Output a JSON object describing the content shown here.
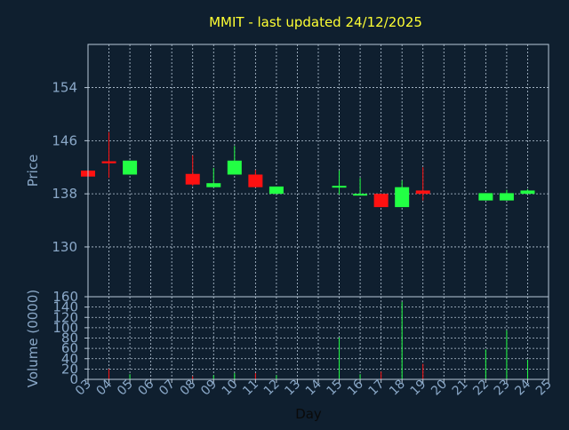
{
  "colors": {
    "background": "#0f1f2f",
    "frame": "#b8c8d8",
    "grid": "#b8c8d8",
    "title": "#ffff33",
    "axis_text": "#8aa8c8",
    "up": "#22ff44",
    "down": "#ff1111"
  },
  "chart_data": {
    "type": "candlestick",
    "title": "MMIT - last updated 24/12/2025",
    "xlabel": "Day",
    "price_panel": {
      "ylabel": "Price",
      "ylim": [
        122.5,
        160.5
      ],
      "yticks": [
        130,
        138,
        146,
        154
      ],
      "grid": true
    },
    "volume_panel": {
      "ylabel": "Volume (0000)",
      "ylim": [
        0,
        160
      ],
      "yticks": [
        0,
        20,
        40,
        60,
        80,
        100,
        120,
        140,
        160
      ],
      "grid": true
    },
    "x_ticks": [
      "03",
      "04",
      "05",
      "06",
      "07",
      "08",
      "09",
      "10",
      "11",
      "12",
      "13",
      "14",
      "15",
      "16",
      "17",
      "18",
      "19",
      "20",
      "21",
      "22",
      "23",
      "24",
      "25"
    ],
    "candles": [
      {
        "day": 3,
        "open": 141.5,
        "high": 141.5,
        "low": 140.6,
        "close": 140.6,
        "volume": 1
      },
      {
        "day": 4,
        "open": 142.9,
        "high": 147.3,
        "low": 140.4,
        "close": 142.6,
        "volume": 20
      },
      {
        "day": 5,
        "open": 140.9,
        "high": 143.0,
        "low": 140.9,
        "close": 143.0,
        "volume": 10
      },
      {
        "day": 8,
        "open": 141.0,
        "high": 143.8,
        "low": 139.2,
        "close": 139.4,
        "volume": 6
      },
      {
        "day": 9,
        "open": 139.0,
        "high": 141.9,
        "low": 139.0,
        "close": 139.6,
        "volume": 8
      },
      {
        "day": 10,
        "open": 140.9,
        "high": 145.2,
        "low": 140.9,
        "close": 143.0,
        "volume": 12
      },
      {
        "day": 11,
        "open": 140.9,
        "high": 141.6,
        "low": 139.0,
        "close": 139.0,
        "volume": 12
      },
      {
        "day": 12,
        "open": 138.0,
        "high": 139.1,
        "low": 138.0,
        "close": 139.1,
        "volume": 8
      },
      {
        "day": 15,
        "open": 139.0,
        "high": 141.5,
        "low": 137.9,
        "close": 139.2,
        "volume": 81
      },
      {
        "day": 16,
        "open": 137.9,
        "high": 140.4,
        "low": 137.9,
        "close": 138.0,
        "volume": 10
      },
      {
        "day": 17,
        "open": 138.0,
        "high": 138.0,
        "low": 136.0,
        "close": 136.0,
        "volume": 15
      },
      {
        "day": 18,
        "open": 136.0,
        "high": 140.0,
        "low": 136.0,
        "close": 139.0,
        "volume": 150
      },
      {
        "day": 19,
        "open": 138.5,
        "high": 142.0,
        "low": 137.0,
        "close": 138.0,
        "volume": 30
      },
      {
        "day": 22,
        "open": 137.0,
        "high": 138.1,
        "low": 137.0,
        "close": 138.1,
        "volume": 58
      },
      {
        "day": 23,
        "open": 137.0,
        "high": 138.6,
        "low": 137.0,
        "close": 138.1,
        "volume": 95
      },
      {
        "day": 24,
        "open": 138.0,
        "high": 138.7,
        "low": 138.0,
        "close": 138.5,
        "volume": 38
      }
    ]
  }
}
